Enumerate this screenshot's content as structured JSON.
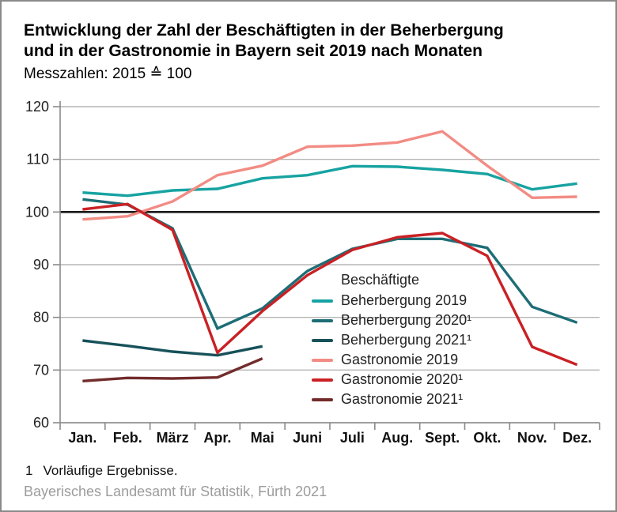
{
  "header": {
    "title_line1": "Entwicklung der Zahl der Beschäftigten in der Beherbergung",
    "title_line2": "und in der Gastronomie in Bayern seit 2019 nach Monaten",
    "subtitle": "Messzahlen: 2015 ≙ 100"
  },
  "legend": {
    "header": "Beschäftigte"
  },
  "chart_data": {
    "type": "line",
    "title": "Entwicklung der Zahl der Beschäftigten in der Beherbergung und in der Gastronomie in Bayern seit 2019 nach Monaten",
    "subtitle": "Messzahlen: 2015 ≙ 100",
    "categories": [
      "Jan.",
      "Feb.",
      "März",
      "Apr.",
      "Mai",
      "Juni",
      "Juli",
      "Aug.",
      "Sept.",
      "Okt.",
      "Nov.",
      "Dez."
    ],
    "yticks": [
      120,
      110,
      100,
      90,
      80,
      70,
      60
    ],
    "ylim": [
      60,
      120
    ],
    "baseline_value": 100,
    "grid": true,
    "legend_position": "inside-right",
    "legend_title": "Beschäftigte",
    "series": [
      {
        "name": "Beherbergung 2019",
        "color": "#16a3a1",
        "values": [
          103.7,
          103.1,
          104.1,
          104.4,
          106.4,
          107.0,
          108.7,
          108.6,
          108.0,
          107.2,
          104.3,
          105.4
        ]
      },
      {
        "name": "Beherbergung 2020¹",
        "color": "#1d6d76",
        "values": [
          102.4,
          101.4,
          96.9,
          77.9,
          81.7,
          88.8,
          93.0,
          94.9,
          94.9,
          93.2,
          82.0,
          79.0
        ]
      },
      {
        "name": "Beherbergung 2021¹",
        "color": "#175159",
        "values": [
          75.6,
          74.6,
          73.5,
          72.8,
          74.5,
          null,
          null,
          null,
          null,
          null,
          null,
          null
        ]
      },
      {
        "name": "Gastronomie 2019",
        "color": "#f28c84",
        "values": [
          98.6,
          99.2,
          102.0,
          107.0,
          108.8,
          112.4,
          112.6,
          113.2,
          115.3,
          108.8,
          102.7,
          102.9
        ]
      },
      {
        "name": "Gastronomie 2020¹",
        "color": "#c92125",
        "values": [
          100.5,
          101.5,
          96.6,
          73.3,
          81.2,
          88.0,
          92.8,
          95.2,
          96.0,
          91.7,
          74.4,
          71.0
        ]
      },
      {
        "name": "Gastronomie 2021¹",
        "color": "#722b2b",
        "values": [
          67.9,
          68.5,
          68.4,
          68.6,
          72.2,
          null,
          null,
          null,
          null,
          null,
          null,
          null
        ]
      }
    ]
  },
  "footnote": {
    "marker": "1",
    "text": "Vorläufige Ergebnisse."
  },
  "source": "Bayerisches Landesamt für Statistik, Fürth 2021"
}
